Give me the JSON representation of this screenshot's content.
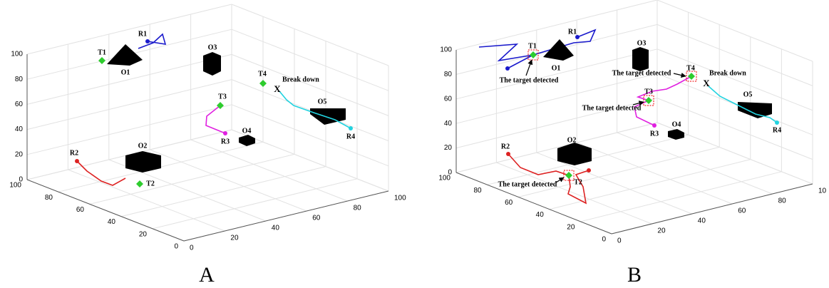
{
  "panels": [
    {
      "title": "A",
      "z_ticks": [
        "0",
        "20",
        "40",
        "60",
        "80",
        "100"
      ],
      "y_ticks": [
        "0",
        "20",
        "40",
        "60",
        "80",
        "100"
      ],
      "x_ticks": [
        "0",
        "20",
        "40",
        "60",
        "80",
        "100"
      ],
      "robots": [
        "R1",
        "R2",
        "R3",
        "R4"
      ],
      "obstacles": [
        "O1",
        "O2",
        "O3",
        "O4",
        "O5"
      ],
      "targets": [
        "T1",
        "T2",
        "T3",
        "T4"
      ],
      "failure_mark": "X",
      "annotations": [
        "Break down"
      ]
    },
    {
      "title": "B",
      "z_ticks": [
        "0",
        "20",
        "40",
        "60",
        "80",
        "100"
      ],
      "y_ticks": [
        "0",
        "20",
        "40",
        "60",
        "80",
        "100"
      ],
      "x_ticks": [
        "0",
        "20",
        "40",
        "60",
        "80",
        "10"
      ],
      "robots": [
        "R1",
        "R2",
        "R3",
        "R4"
      ],
      "obstacles": [
        "O1",
        "O2",
        "O3",
        "O4",
        "O5"
      ],
      "targets": [
        "T1",
        "T2",
        "T3",
        "T4"
      ],
      "failure_mark": "X",
      "annotations": [
        "Break down",
        "The target detected",
        "The target detected",
        "The target detected",
        "The target detected"
      ]
    }
  ]
}
